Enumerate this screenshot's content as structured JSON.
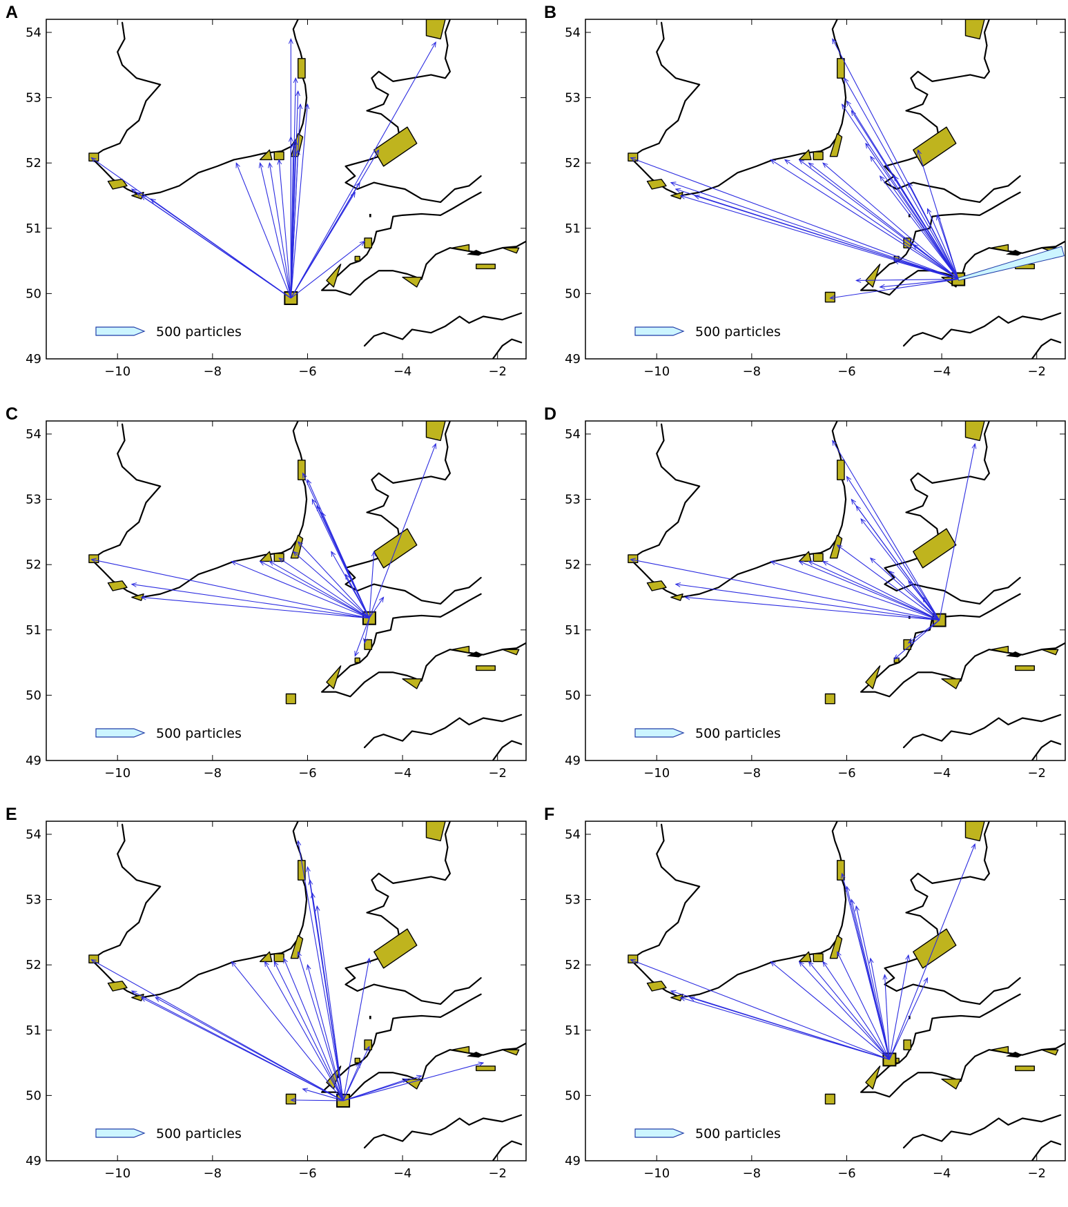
{
  "figure": {
    "domain_extent": {
      "lon": [
        -11.5,
        -1.4
      ],
      "lat": [
        49,
        54.2
      ]
    },
    "x_ticks": [
      -10,
      -8,
      -6,
      -4,
      -2
    ],
    "y_ticks": [
      49,
      50,
      51,
      52,
      53,
      54
    ],
    "x_tick_labels": [
      "−10",
      "−8",
      "−6",
      "−4",
      "−2"
    ],
    "y_tick_labels": [
      "49",
      "50",
      "51",
      "52",
      "53",
      "54"
    ],
    "legend_label": "500 particles",
    "colors": {
      "mpa_fill": "#bfb41e",
      "arrow": "#2a2ae0",
      "legend_arrow_fill": "#ccf5ff",
      "legend_arrow_stroke": "#1f3ca8",
      "coastline": "#000000"
    },
    "panels": [
      {
        "letter": "A",
        "source": {
          "lon": -6.35,
          "lat": 49.93
        },
        "flows": [
          [
            -10.55,
            52.08,
            1
          ],
          [
            -9.7,
            51.6,
            1
          ],
          [
            -9.6,
            51.55,
            1
          ],
          [
            -9.5,
            51.5,
            1
          ],
          [
            -9.3,
            51.45,
            1
          ],
          [
            -7.5,
            52.0,
            1
          ],
          [
            -7.0,
            52.0,
            1
          ],
          [
            -6.8,
            52.0,
            1
          ],
          [
            -6.6,
            52.05,
            1
          ],
          [
            -6.35,
            53.9,
            1
          ],
          [
            -6.25,
            53.3,
            1
          ],
          [
            -6.2,
            53.1,
            1
          ],
          [
            -6.15,
            52.9,
            1
          ],
          [
            -6.0,
            52.9,
            1
          ],
          [
            -6.35,
            52.4,
            1
          ],
          [
            -6.3,
            52.3,
            1
          ],
          [
            -6.25,
            52.35,
            1
          ],
          [
            -6.2,
            52.2,
            1
          ],
          [
            -4.5,
            52.2,
            1
          ],
          [
            -4.9,
            51.7,
            1
          ],
          [
            -5.0,
            51.55,
            1
          ],
          [
            -4.8,
            50.8,
            1
          ],
          [
            -3.3,
            53.85,
            1
          ]
        ]
      },
      {
        "letter": "B",
        "source": {
          "lon": -3.65,
          "lat": 50.22
        },
        "flows": [
          [
            -10.55,
            52.08,
            1
          ],
          [
            -9.7,
            51.7,
            1
          ],
          [
            -9.5,
            51.5,
            1
          ],
          [
            -9.2,
            51.5,
            1
          ],
          [
            -9.6,
            51.6,
            1
          ],
          [
            -7.6,
            52.05,
            1
          ],
          [
            -7.3,
            52.05,
            1
          ],
          [
            -7.0,
            52.05,
            1
          ],
          [
            -6.8,
            52.0,
            1
          ],
          [
            -6.5,
            52.0,
            1
          ],
          [
            -6.3,
            53.9,
            1
          ],
          [
            -6.05,
            53.3,
            1
          ],
          [
            -6.0,
            52.95,
            1
          ],
          [
            -5.9,
            52.8,
            1
          ],
          [
            -6.1,
            52.9,
            1
          ],
          [
            -5.6,
            52.3,
            1
          ],
          [
            -5.5,
            52.1,
            1
          ],
          [
            -5.3,
            51.8,
            1
          ],
          [
            -5.0,
            51.8,
            1
          ],
          [
            -4.7,
            51.7,
            1
          ],
          [
            -4.5,
            52.2,
            1
          ],
          [
            -4.3,
            51.3,
            1
          ],
          [
            -4.1,
            51.2,
            1
          ],
          [
            -4.6,
            50.75,
            1
          ],
          [
            -5.0,
            50.5,
            1
          ],
          [
            -5.8,
            50.2,
            1
          ],
          [
            -5.3,
            50.1,
            1
          ],
          [
            -6.35,
            49.93,
            1
          ],
          [
            -1.45,
            50.65,
            4
          ]
        ]
      },
      {
        "letter": "C",
        "source": {
          "lon": -4.7,
          "lat": 51.18
        },
        "flows": [
          [
            -10.55,
            52.08,
            1
          ],
          [
            -9.7,
            51.7,
            1
          ],
          [
            -9.5,
            51.5,
            1
          ],
          [
            -7.6,
            52.05,
            1
          ],
          [
            -7.0,
            52.05,
            1
          ],
          [
            -6.8,
            52.05,
            1
          ],
          [
            -6.6,
            52.1,
            1
          ],
          [
            -6.3,
            52.2,
            1
          ],
          [
            -6.1,
            53.4,
            1
          ],
          [
            -6.0,
            53.3,
            1
          ],
          [
            -5.9,
            53.0,
            1
          ],
          [
            -5.8,
            52.9,
            1
          ],
          [
            -5.7,
            52.8,
            1
          ],
          [
            -6.2,
            52.35,
            1
          ],
          [
            -5.5,
            52.2,
            1
          ],
          [
            -4.6,
            52.2,
            1
          ],
          [
            -5.2,
            51.85,
            1
          ],
          [
            -4.4,
            51.5,
            1
          ],
          [
            -4.8,
            50.8,
            1
          ],
          [
            -5.0,
            50.6,
            1
          ],
          [
            -3.3,
            53.85,
            1
          ]
        ]
      },
      {
        "letter": "D",
        "source": {
          "lon": -4.05,
          "lat": 51.15
        },
        "flows": [
          [
            -10.55,
            52.08,
            1
          ],
          [
            -9.6,
            51.7,
            1
          ],
          [
            -9.4,
            51.5,
            1
          ],
          [
            -7.6,
            52.05,
            1
          ],
          [
            -7.0,
            52.05,
            1
          ],
          [
            -6.8,
            52.05,
            1
          ],
          [
            -6.5,
            52.05,
            1
          ],
          [
            -6.2,
            52.3,
            1
          ],
          [
            -6.3,
            53.9,
            1
          ],
          [
            -6.0,
            53.35,
            1
          ],
          [
            -5.9,
            53.0,
            1
          ],
          [
            -5.8,
            52.9,
            1
          ],
          [
            -5.7,
            52.7,
            1
          ],
          [
            -5.5,
            52.1,
            1
          ],
          [
            -5.1,
            51.9,
            1
          ],
          [
            -4.7,
            51.75,
            1
          ],
          [
            -4.4,
            51.5,
            1
          ],
          [
            -4.7,
            50.8,
            1
          ],
          [
            -5.0,
            50.55,
            1
          ],
          [
            -3.3,
            53.85,
            1
          ]
        ]
      },
      {
        "letter": "E",
        "source": {
          "lon": -5.25,
          "lat": 49.92
        },
        "flows": [
          [
            -10.55,
            52.08,
            1
          ],
          [
            -9.7,
            51.6,
            1
          ],
          [
            -9.5,
            51.5,
            1
          ],
          [
            -9.2,
            51.5,
            1
          ],
          [
            -7.6,
            52.05,
            1
          ],
          [
            -6.9,
            52.05,
            1
          ],
          [
            -6.7,
            52.05,
            1
          ],
          [
            -6.5,
            52.1,
            1
          ],
          [
            -6.2,
            53.9,
            1
          ],
          [
            -6.0,
            53.5,
            1
          ],
          [
            -5.95,
            53.3,
            1
          ],
          [
            -5.9,
            53.1,
            1
          ],
          [
            -5.8,
            52.9,
            1
          ],
          [
            -6.2,
            52.2,
            1
          ],
          [
            -6.0,
            52.0,
            1
          ],
          [
            -6.35,
            49.93,
            1
          ],
          [
            -6.1,
            50.1,
            1
          ],
          [
            -4.7,
            52.1,
            1
          ],
          [
            -4.7,
            50.75,
            1
          ],
          [
            -4.9,
            50.5,
            1
          ],
          [
            -3.9,
            50.25,
            1
          ],
          [
            -3.6,
            50.3,
            1
          ],
          [
            -2.3,
            50.5,
            1
          ]
        ]
      },
      {
        "letter": "F",
        "source": {
          "lon": -5.1,
          "lat": 50.55
        },
        "flows": [
          [
            -10.55,
            52.08,
            1
          ],
          [
            -9.7,
            51.6,
            1
          ],
          [
            -9.5,
            51.5,
            1
          ],
          [
            -9.3,
            51.5,
            1
          ],
          [
            -7.6,
            52.05,
            1
          ],
          [
            -7.0,
            52.05,
            1
          ],
          [
            -6.8,
            52.05,
            1
          ],
          [
            -6.5,
            52.05,
            1
          ],
          [
            -6.1,
            53.4,
            1
          ],
          [
            -6.0,
            53.2,
            1
          ],
          [
            -5.9,
            53.0,
            1
          ],
          [
            -5.8,
            52.9,
            1
          ],
          [
            -6.2,
            52.2,
            1
          ],
          [
            -5.5,
            52.1,
            1
          ],
          [
            -5.2,
            51.85,
            1
          ],
          [
            -4.7,
            52.15,
            1
          ],
          [
            -4.3,
            51.8,
            1
          ],
          [
            -3.3,
            53.85,
            1
          ]
        ]
      }
    ]
  }
}
